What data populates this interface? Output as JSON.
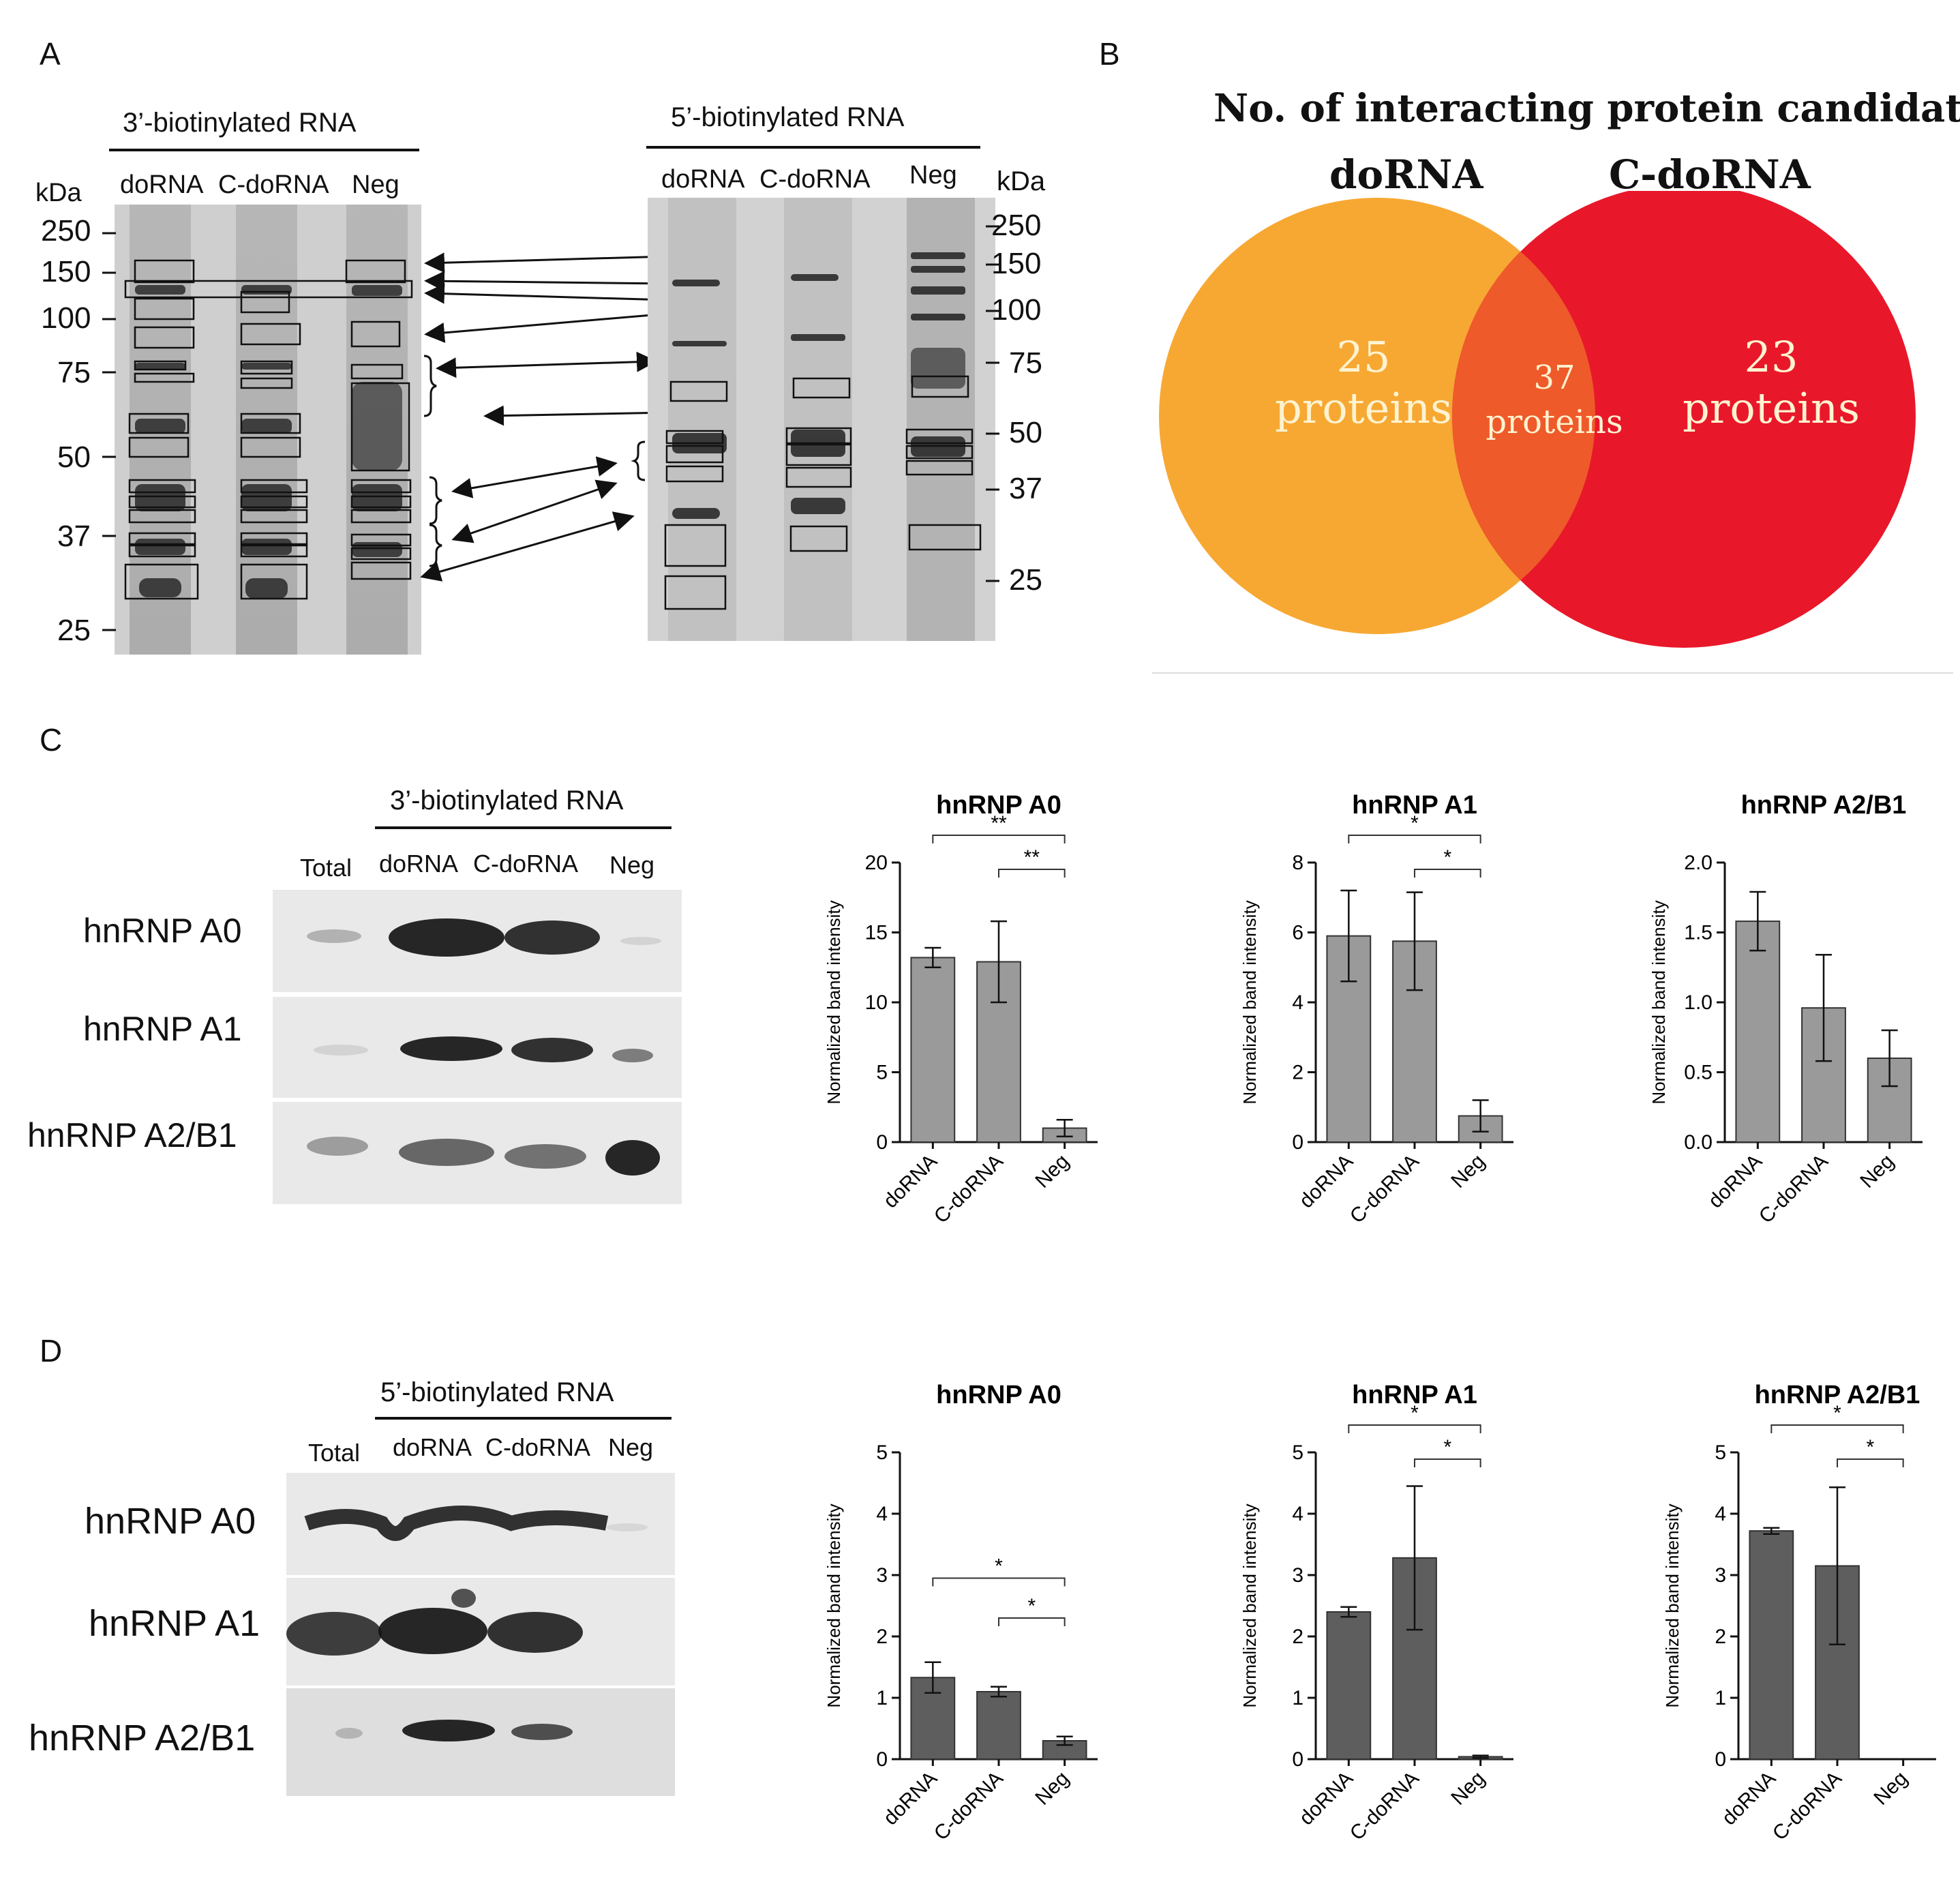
{
  "panels": {
    "a": {
      "letter": "A",
      "left_gel": {
        "header": "3’-biotinylated RNA",
        "unit": "kDa",
        "lanes": [
          "doRNA",
          "C-doRNA",
          "Neg"
        ],
        "markers": [
          "250",
          "150",
          "100",
          "75",
          "50",
          "37",
          "25"
        ]
      },
      "right_gel": {
        "header": "5’-biotinylated RNA",
        "unit": "kDa",
        "lanes": [
          "doRNA",
          "C-doRNA",
          "Neg"
        ],
        "markers": [
          "250",
          "150",
          "100",
          "75",
          "50",
          "37",
          "25"
        ]
      }
    },
    "b": {
      "letter": "B",
      "title": "No. of interacting protein candidates",
      "left_set": "doRNA",
      "right_set": "C-doRNA",
      "left_only_count": "25",
      "left_only_unit": "proteins",
      "overlap_count": "37",
      "overlap_unit": "proteins",
      "right_only_count": "23",
      "right_only_unit": "proteins",
      "colors": {
        "left": "#f7a833",
        "right": "#e8182a",
        "overlap": "#ef5a2a"
      }
    },
    "c": {
      "letter": "C",
      "blot_header": "3’-biotinylated RNA",
      "lanes": [
        "Total",
        "doRNA",
        "C-doRNA",
        "Neg"
      ],
      "rows": [
        "hnRNP A0",
        "hnRNP A1",
        "hnRNP A2/B1"
      ]
    },
    "d": {
      "letter": "D",
      "blot_header": "5’-biotinylated RNA",
      "lanes": [
        "Total",
        "doRNA",
        "C-doRNA",
        "Neg"
      ],
      "rows": [
        "hnRNP A0",
        "hnRNP A1",
        "hnRNP A2/B1"
      ]
    }
  },
  "chart_data": [
    {
      "id": "c1",
      "type": "bar",
      "title": "hnRNP A0",
      "ylabel": "Normalized band intensity",
      "categories": [
        "doRNA",
        "C-doRNA",
        "Neg"
      ],
      "values": [
        13.2,
        12.9,
        1.0
      ],
      "errors": [
        0.7,
        2.9,
        0.6
      ],
      "ylim": [
        0,
        20
      ],
      "yticks": [
        "0",
        "5",
        "10",
        "15",
        "20"
      ],
      "bar_color": "#9a9a9a",
      "significance": [
        {
          "from": 0,
          "to": 2,
          "label": "**"
        },
        {
          "from": 1,
          "to": 2,
          "label": "**"
        }
      ]
    },
    {
      "id": "c2",
      "type": "bar",
      "title": "hnRNP A1",
      "ylabel": "Normalized band intensity",
      "categories": [
        "doRNA",
        "C-doRNA",
        "Neg"
      ],
      "values": [
        5.9,
        5.75,
        0.75
      ],
      "errors": [
        1.3,
        1.4,
        0.45
      ],
      "ylim": [
        0,
        8
      ],
      "yticks": [
        "0",
        "2",
        "4",
        "6",
        "8"
      ],
      "bar_color": "#9a9a9a",
      "significance": [
        {
          "from": 0,
          "to": 2,
          "label": "*"
        },
        {
          "from": 1,
          "to": 2,
          "label": "*"
        }
      ]
    },
    {
      "id": "c3",
      "type": "bar",
      "title": "hnRNP A2/B1",
      "ylabel": "Normalized band intensity",
      "categories": [
        "doRNA",
        "C-doRNA",
        "Neg"
      ],
      "values": [
        1.58,
        0.96,
        0.6
      ],
      "errors": [
        0.21,
        0.38,
        0.2
      ],
      "ylim": [
        0,
        2
      ],
      "yticks": [
        "0.0",
        "0.5",
        "1.0",
        "1.5",
        "2.0"
      ],
      "bar_color": "#9a9a9a",
      "significance": []
    },
    {
      "id": "d1",
      "type": "bar",
      "title": "hnRNP A0",
      "ylabel": "Normalized band intensity",
      "categories": [
        "doRNA",
        "C-doRNA",
        "Neg"
      ],
      "values": [
        1.33,
        1.1,
        0.3
      ],
      "errors": [
        0.25,
        0.08,
        0.07
      ],
      "ylim": [
        0,
        5
      ],
      "yticks": [
        "0",
        "1",
        "2",
        "3",
        "4",
        "5"
      ],
      "bar_color": "#5e5e5e",
      "significance": [
        {
          "from": 0,
          "to": 2,
          "label": "*",
          "level": 2.95
        },
        {
          "from": 1,
          "to": 2,
          "label": "*",
          "level": 2.3
        }
      ]
    },
    {
      "id": "d2",
      "type": "bar",
      "title": "hnRNP A1",
      "ylabel": "Normalized band intensity",
      "categories": [
        "doRNA",
        "C-doRNA",
        "Neg"
      ],
      "values": [
        2.4,
        3.28,
        0.04
      ],
      "errors": [
        0.08,
        1.17,
        0.02
      ],
      "ylim": [
        0,
        5
      ],
      "yticks": [
        "0",
        "1",
        "2",
        "3",
        "4",
        "5"
      ],
      "bar_color": "#5e5e5e",
      "significance": [
        {
          "from": 0,
          "to": 2,
          "label": "*"
        },
        {
          "from": 1,
          "to": 2,
          "label": "*"
        }
      ]
    },
    {
      "id": "d3",
      "type": "bar",
      "title": "hnRNP A2/B1",
      "ylabel": "Normalized band intensity",
      "categories": [
        "doRNA",
        "C-doRNA",
        "Neg"
      ],
      "values": [
        3.72,
        3.15,
        0.0
      ],
      "errors": [
        0.05,
        1.28,
        0.0
      ],
      "ylim": [
        0,
        5
      ],
      "yticks": [
        "0",
        "1",
        "2",
        "3",
        "4",
        "5"
      ],
      "bar_color": "#5e5e5e",
      "significance": [
        {
          "from": 0,
          "to": 2,
          "label": "*"
        },
        {
          "from": 1,
          "to": 2,
          "label": "*"
        }
      ]
    }
  ]
}
